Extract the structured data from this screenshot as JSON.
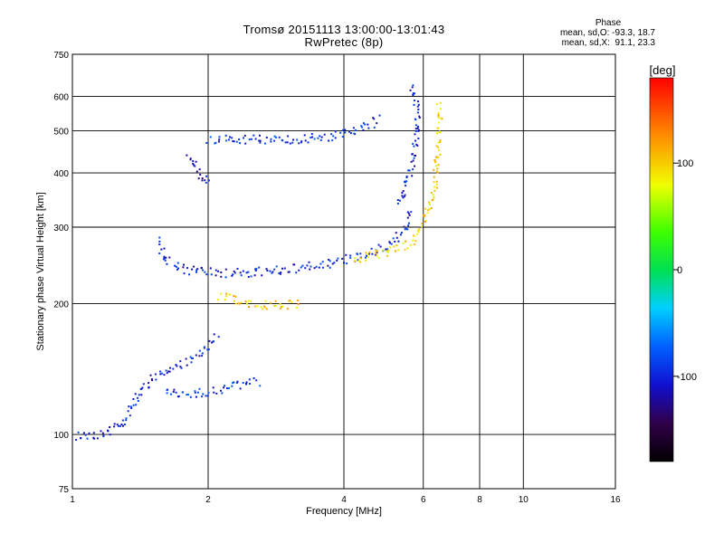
{
  "chart_data": {
    "type": "scatter",
    "title": "Tromsø 20151113 13:00:00-13:01:43",
    "subtitle": "RwPretec (8p)",
    "xlabel": "Frequency [MHz]",
    "ylabel": "Stationary phase Virtual Height [km]",
    "x_scale": "log",
    "y_scale": "log",
    "xlim": [
      1,
      16
    ],
    "ylim": [
      75,
      750
    ],
    "x_ticks": [
      1,
      2,
      4,
      6,
      8,
      10,
      16
    ],
    "y_ticks": [
      75,
      100,
      200,
      300,
      400,
      500,
      600,
      750
    ],
    "x_tick_labels": [
      "1",
      "2",
      "4",
      "6",
      "8",
      "10",
      "16"
    ],
    "y_tick_labels": [
      "75",
      "100",
      "200",
      "300",
      "400",
      "500",
      "600",
      "750"
    ],
    "grid": true,
    "phase_info": {
      "header": "Phase",
      "line_o": "mean, sd,O: -93.3, 18.7",
      "line_x": "mean, sd,X:  91.1, 23.3"
    },
    "colorbar": {
      "label": "[deg]",
      "range": [
        -180,
        180
      ],
      "ticks": [
        100,
        0,
        -100
      ],
      "tick_labels": [
        "100",
        "0",
        "-100"
      ]
    },
    "traces": [
      {
        "name": "",
        "phase": -100,
        "x": [
          1.0,
          1.1,
          1.2,
          1.3,
          1.4,
          1.5,
          1.6,
          1.7,
          1.8,
          1.9,
          2.0,
          2.1
        ],
        "y": [
          100,
          100,
          102,
          108,
          125,
          135,
          140,
          145,
          150,
          155,
          160,
          170
        ]
      },
      {
        "name": "",
        "phase": -100,
        "x": [
          1.55,
          1.6,
          1.7,
          1.8,
          2.0,
          2.2,
          2.5,
          2.8,
          3.2,
          3.6,
          4.0,
          4.5,
          5.0,
          5.4,
          5.6
        ],
        "y": [
          280,
          255,
          245,
          240,
          237,
          236,
          237,
          239,
          243,
          248,
          254,
          262,
          275,
          295,
          330
        ]
      },
      {
        "name": "",
        "phase": -100,
        "x": [
          5.3,
          5.5,
          5.7,
          5.75,
          5.8,
          5.75,
          5.7,
          5.6
        ],
        "y": [
          340,
          380,
          430,
          480,
          540,
          590,
          620,
          640
        ]
      },
      {
        "name": "",
        "phase": -95,
        "x": [
          2.0,
          2.2,
          2.5,
          2.8,
          3.2,
          3.6,
          4.0,
          4.4,
          4.8
        ],
        "y": [
          480,
          482,
          480,
          478,
          480,
          485,
          495,
          510,
          535
        ]
      },
      {
        "name": "",
        "phase": -110,
        "x": [
          1.8,
          1.85,
          1.9,
          1.95,
          2.0
        ],
        "y": [
          440,
          420,
          400,
          390,
          380
        ]
      },
      {
        "name": "",
        "phase": 95,
        "x": [
          4.2,
          4.6,
          5.0,
          5.5,
          5.8,
          6.0,
          6.2,
          6.35,
          6.4,
          6.45,
          6.5,
          6.45
        ],
        "y": [
          255,
          258,
          265,
          275,
          290,
          310,
          340,
          380,
          430,
          480,
          540,
          580
        ]
      },
      {
        "name": "",
        "phase": 100,
        "x": [
          2.1,
          2.3,
          2.5,
          2.8,
          3.2
        ],
        "y": [
          210,
          205,
          200,
          200,
          200
        ]
      },
      {
        "name": "",
        "phase": -90,
        "x": [
          1.6,
          1.8,
          2.0,
          2.3,
          2.6
        ],
        "y": [
          125,
          125,
          126,
          130,
          133
        ]
      }
    ]
  }
}
